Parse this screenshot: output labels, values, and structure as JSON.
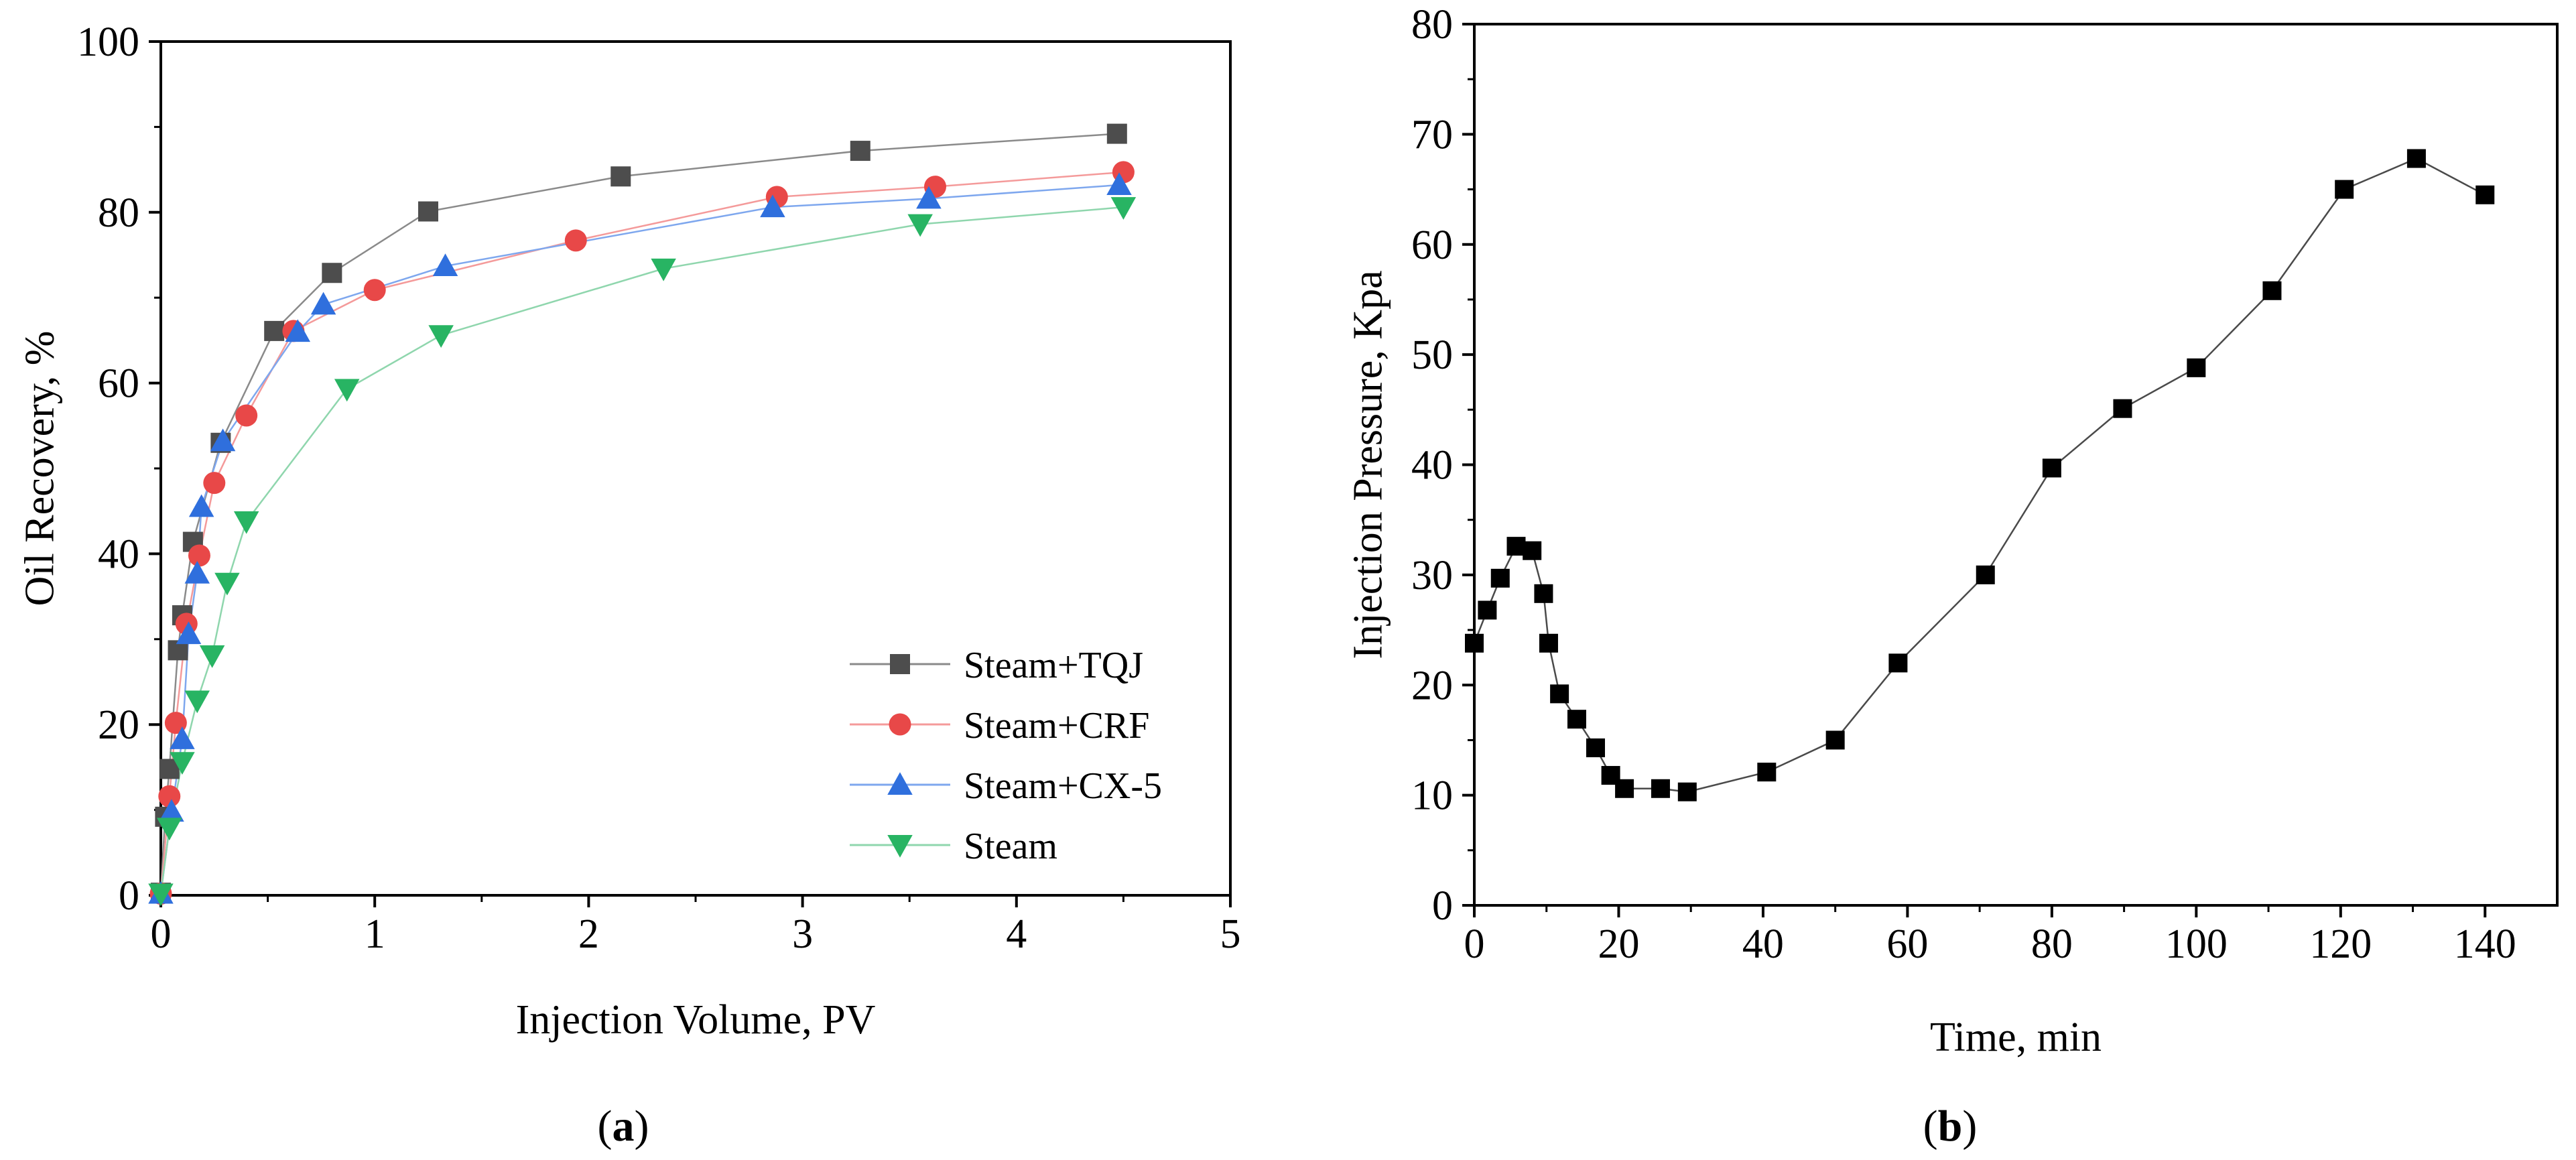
{
  "chart_data": [
    {
      "type": "line",
      "panel_label": "(a)",
      "xlabel": "Injection Volume, PV",
      "ylabel": "Oil Recovery, %",
      "xlim": [
        0,
        5
      ],
      "ylim": [
        0,
        100
      ],
      "xticks": [
        0,
        1,
        2,
        3,
        4,
        5
      ],
      "yticks": [
        0,
        20,
        40,
        60,
        80,
        100
      ],
      "grid": false,
      "legend_position": "bottom-right",
      "series": [
        {
          "name": "Steam+TQJ",
          "marker": "square",
          "marker_color": "#4d4d4d",
          "line_color": "#8a8a8a",
          "x": [
            0.0,
            0.02,
            0.04,
            0.08,
            0.1,
            0.15,
            0.28,
            0.53,
            0.8,
            1.25,
            2.15,
            3.27,
            4.47
          ],
          "y": [
            0.3,
            9.2,
            14.8,
            28.7,
            32.8,
            41.4,
            53.0,
            66.1,
            72.9,
            80.1,
            84.2,
            87.2,
            89.2
          ]
        },
        {
          "name": "Steam+CRF",
          "marker": "circle",
          "marker_color": "#e84848",
          "line_color": "#f49a9a",
          "x": [
            0.0,
            0.04,
            0.07,
            0.12,
            0.18,
            0.25,
            0.4,
            0.62,
            1.0,
            1.94,
            2.88,
            3.62,
            4.5
          ],
          "y": [
            0.2,
            11.6,
            20.2,
            31.8,
            39.8,
            48.3,
            56.2,
            66.1,
            70.9,
            76.7,
            81.8,
            83.0,
            84.7
          ]
        },
        {
          "name": "Steam+CX-5",
          "marker": "triangle-up",
          "marker_color": "#2f6fdd",
          "line_color": "#7ea7ee",
          "x": [
            0.0,
            0.05,
            0.1,
            0.13,
            0.17,
            0.19,
            0.29,
            0.64,
            0.76,
            1.33,
            2.86,
            3.59,
            4.48
          ],
          "y": [
            0.2,
            9.8,
            18.3,
            30.6,
            37.7,
            45.5,
            53.2,
            66.0,
            69.2,
            73.7,
            80.6,
            81.6,
            83.2
          ]
        },
        {
          "name": "Steam",
          "marker": "triangle-down",
          "marker_color": "#28b463",
          "line_color": "#8fd6ad",
          "x": [
            0.0,
            0.04,
            0.1,
            0.17,
            0.24,
            0.31,
            0.4,
            0.87,
            1.31,
            2.35,
            3.55,
            4.5
          ],
          "y": [
            0.2,
            7.9,
            15.6,
            22.8,
            28.1,
            36.6,
            43.8,
            59.3,
            65.6,
            73.4,
            78.6,
            80.6
          ]
        }
      ]
    },
    {
      "type": "line",
      "panel_label": "(b)",
      "xlabel": "Time, min",
      "ylabel": "Injection Pressure, Kpa",
      "xlim": [
        0,
        150
      ],
      "ylim": [
        0,
        80
      ],
      "xticks": [
        0,
        20,
        40,
        60,
        80,
        100,
        120,
        140
      ],
      "yticks": [
        0,
        10,
        20,
        30,
        40,
        50,
        60,
        70,
        80
      ],
      "grid": false,
      "series": [
        {
          "marker": "square",
          "marker_color": "#000000",
          "line_color": "#4a4a4a",
          "x": [
            0,
            1.8,
            3.6,
            5.8,
            8.0,
            9.6,
            10.3,
            11.8,
            14.2,
            16.8,
            18.9,
            20.8,
            25.8,
            29.5,
            40.5,
            50.0,
            58.7,
            70.8,
            80.0,
            89.8,
            100.0,
            110.5,
            120.5,
            130.5,
            140.0
          ],
          "y": [
            23.8,
            26.8,
            29.7,
            32.6,
            32.2,
            28.3,
            23.8,
            19.2,
            16.9,
            14.3,
            11.8,
            10.6,
            10.6,
            10.3,
            12.1,
            15.0,
            22.0,
            30.0,
            39.7,
            45.1,
            48.8,
            55.8,
            65.0,
            67.8,
            64.5
          ]
        }
      ]
    }
  ]
}
